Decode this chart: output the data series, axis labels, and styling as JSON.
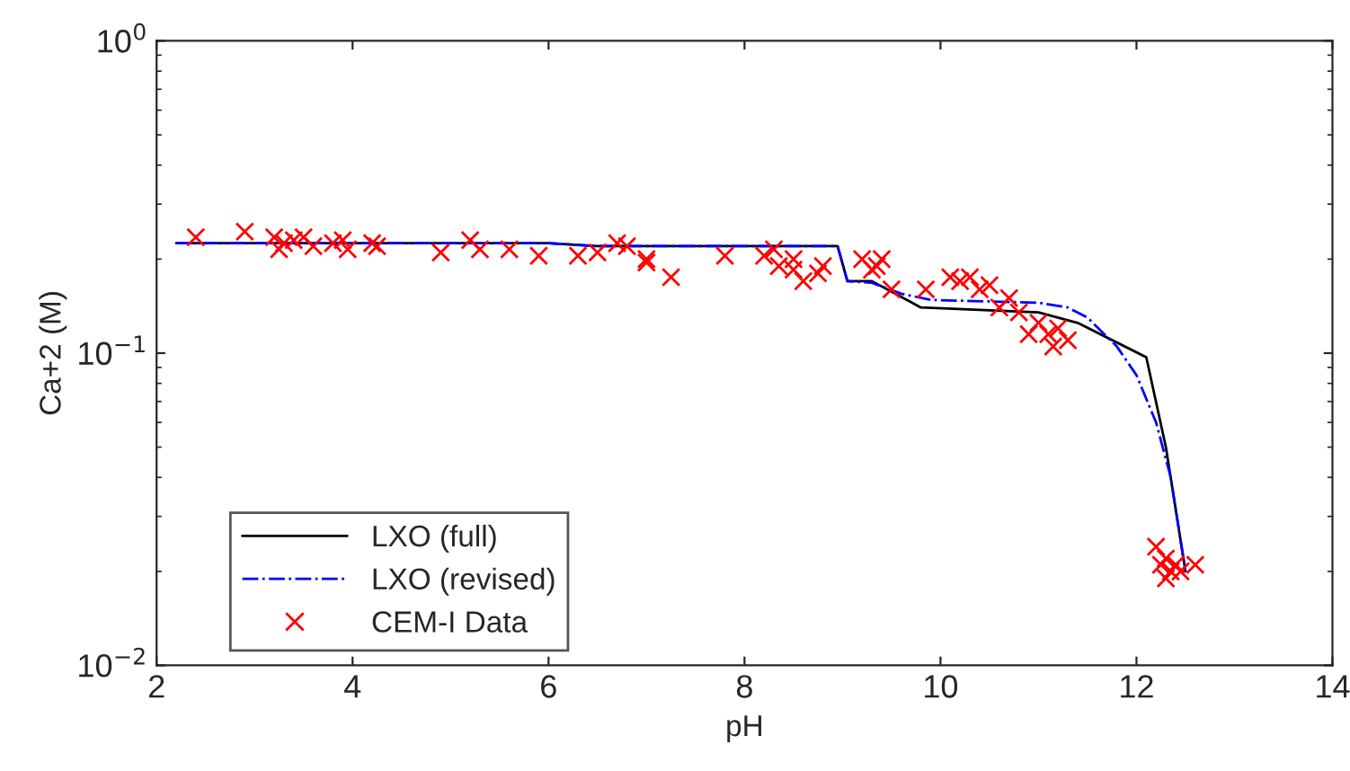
{
  "chart_data": {
    "type": "line",
    "xlabel": "pH",
    "ylabel": "Ca+2 (M)",
    "log": "y",
    "xlim": [
      2,
      14
    ],
    "xticks": [
      2,
      4,
      6,
      8,
      10,
      12,
      14
    ],
    "ylim": [
      0.01,
      1
    ],
    "yticks": [
      {
        "value": 0.01,
        "label": "10$^{−2}$"
      },
      {
        "value": 0.1,
        "label": "10$^{−1}$"
      },
      {
        "value": 1,
        "label": "10$^{0}$"
      }
    ],
    "grid": false,
    "legend": "bottom left",
    "series": [
      {
        "name": "LXO (full)",
        "color": "#000000",
        "line_style": "solid",
        "marker": "none",
        "x": [
          2.2,
          6,
          6.5,
          8.95,
          9.05,
          9.3,
          9.8,
          11.0,
          11.4,
          12.1,
          12.3,
          12.5
        ],
        "values": [
          0.225,
          0.225,
          0.22,
          0.22,
          0.17,
          0.17,
          0.14,
          0.135,
          0.125,
          0.097,
          0.05,
          0.02
        ]
      },
      {
        "name": "LXO (revised)",
        "color": "#0000ff",
        "line_style": "dashdot",
        "marker": "none",
        "x": [
          2.2,
          6,
          6.5,
          8.95,
          9.05,
          9.3,
          9.6,
          9.9,
          11.0,
          11.3,
          11.5,
          11.8,
          12.0,
          12.2,
          12.35,
          12.5
        ],
        "values": [
          0.225,
          0.225,
          0.22,
          0.22,
          0.17,
          0.168,
          0.155,
          0.148,
          0.145,
          0.14,
          0.13,
          0.105,
          0.085,
          0.06,
          0.04,
          0.02
        ]
      },
      {
        "name": "CEM-I Data",
        "type": "scatter",
        "color": "#ff0000",
        "marker": "cross",
        "x": [
          2.4,
          2.9,
          3.2,
          3.25,
          3.3,
          3.4,
          3.5,
          3.6,
          3.8,
          3.9,
          3.95,
          4.2,
          4.25,
          4.9,
          5.2,
          5.3,
          5.6,
          5.9,
          6.3,
          6.5,
          6.7,
          6.8,
          7.0,
          7.0,
          7.25,
          7.8,
          8.2,
          8.3,
          8.35,
          8.5,
          8.5,
          8.6,
          8.75,
          8.8,
          9.2,
          9.3,
          9.35,
          9.4,
          9.5,
          9.85,
          10.1,
          10.2,
          10.3,
          10.4,
          10.5,
          10.6,
          10.7,
          10.8,
          10.9,
          11.0,
          11.1,
          11.15,
          11.2,
          11.3,
          12.2,
          12.25,
          12.3,
          12.3,
          12.35,
          12.4,
          12.45,
          12.6
        ],
        "values": [
          0.235,
          0.245,
          0.235,
          0.215,
          0.225,
          0.23,
          0.235,
          0.22,
          0.225,
          0.23,
          0.215,
          0.225,
          0.22,
          0.21,
          0.23,
          0.215,
          0.215,
          0.205,
          0.205,
          0.21,
          0.225,
          0.22,
          0.2,
          0.195,
          0.175,
          0.205,
          0.205,
          0.215,
          0.19,
          0.2,
          0.185,
          0.17,
          0.18,
          0.19,
          0.2,
          0.185,
          0.19,
          0.2,
          0.16,
          0.16,
          0.175,
          0.17,
          0.175,
          0.16,
          0.165,
          0.14,
          0.15,
          0.135,
          0.115,
          0.125,
          0.115,
          0.105,
          0.12,
          0.11,
          0.024,
          0.021,
          0.022,
          0.019,
          0.02,
          0.021,
          0.02,
          0.021
        ]
      }
    ]
  }
}
